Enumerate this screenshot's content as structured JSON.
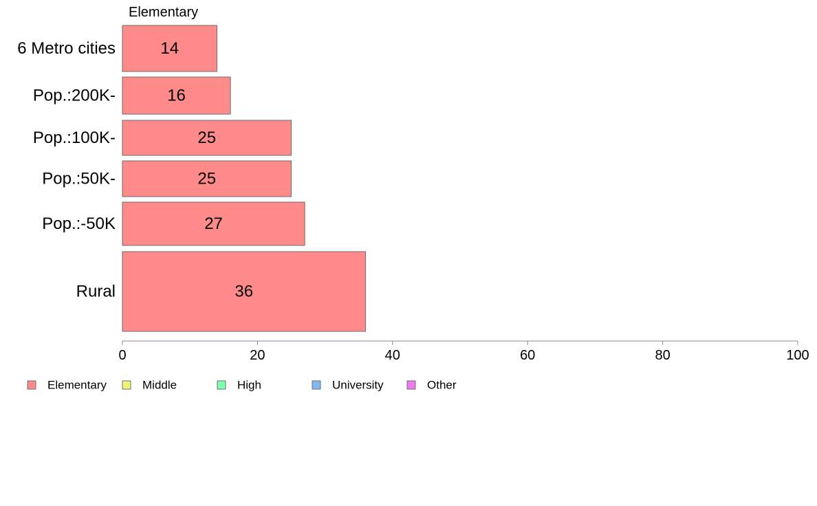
{
  "chart_data": {
    "type": "bar",
    "orientation": "horizontal",
    "column_title": "Elementary",
    "categories": [
      "6 Metro cities",
      "Pop.:200K-",
      "Pop.:100K-",
      "Pop.:50K-",
      "Pop.:-50K",
      "Rural"
    ],
    "series": [
      {
        "name": "Elementary",
        "values": [
          14,
          16,
          25,
          25,
          27,
          36
        ],
        "value_labels": [
          "14",
          "16",
          "25",
          "25",
          "27",
          "36"
        ]
      }
    ],
    "xlim": [
      0,
      100
    ],
    "xticks": [
      0,
      20,
      40,
      60,
      80,
      100
    ],
    "xtick_labels": [
      "0",
      "20",
      "40",
      "60",
      "80",
      "100"
    ],
    "legend": {
      "placement": "bottom-left",
      "items": [
        {
          "label": "Elementary",
          "color": "#ff8a8a"
        },
        {
          "label": "Middle",
          "color": "#f0f57a"
        },
        {
          "label": "High",
          "color": "#7dffb4"
        },
        {
          "label": "University",
          "color": "#82b8f2"
        },
        {
          "label": "Other",
          "color": "#f07af0"
        }
      ]
    },
    "bar_color": "#ff8a8a",
    "bar_stroke": "#6e6e6e",
    "axis_color": "#888888",
    "grid": false
  }
}
